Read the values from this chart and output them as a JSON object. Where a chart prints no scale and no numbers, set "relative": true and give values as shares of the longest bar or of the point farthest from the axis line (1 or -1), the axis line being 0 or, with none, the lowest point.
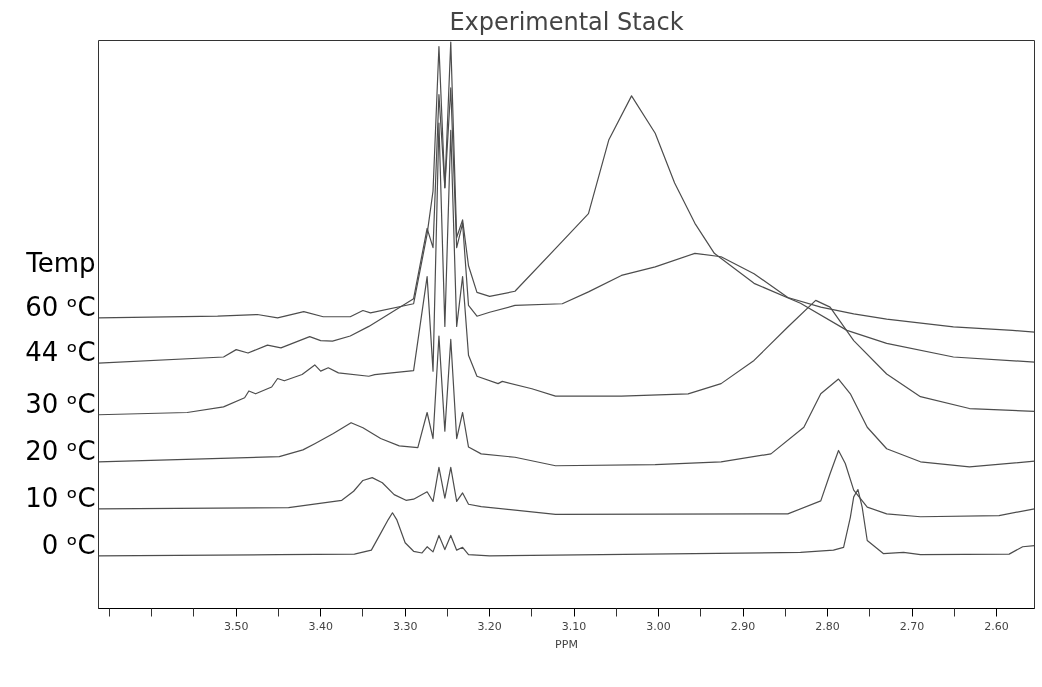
{
  "chart_data": {
    "type": "line",
    "title": "Experimental Stack",
    "xlabel": "PPM",
    "legend_title": "Temp",
    "relative": true,
    "grid": false,
    "marker": "none",
    "line_style": "solid",
    "xlim": [
      3.663,
      2.555
    ],
    "xticks": [
      {
        "value": 3.5,
        "label": "3.50"
      },
      {
        "value": 3.4,
        "label": "3.40"
      },
      {
        "value": 3.3,
        "label": "3.30"
      },
      {
        "value": 3.2,
        "label": "3.20"
      },
      {
        "value": 3.1,
        "label": "3.10"
      },
      {
        "value": 3.0,
        "label": "3.00"
      },
      {
        "value": 2.9,
        "label": "2.90"
      },
      {
        "value": 2.8,
        "label": "2.80"
      },
      {
        "value": 2.7,
        "label": "2.70"
      },
      {
        "value": 2.6,
        "label": "2.60"
      }
    ],
    "series": [
      {
        "name": "60 ᵒC",
        "color": "#4d4d4d",
        "x": [
          3.663,
          3.522,
          3.475,
          3.451,
          3.42,
          3.397,
          3.365,
          3.35,
          3.341,
          3.29,
          3.274,
          3.267,
          3.26,
          3.253,
          3.246,
          3.239,
          3.232,
          3.225,
          3.215,
          3.2,
          3.17,
          3.114,
          3.083,
          3.059,
          3.032,
          3.004,
          2.981,
          2.957,
          2.934,
          2.887,
          2.832,
          2.777,
          2.73,
          2.651,
          2.555
        ],
        "values": [
          0.513,
          0.516,
          0.519,
          0.513,
          0.524,
          0.515,
          0.515,
          0.526,
          0.522,
          0.538,
          0.661,
          0.737,
          0.992,
          0.743,
          1.0,
          0.655,
          0.686,
          0.605,
          0.558,
          0.551,
          0.56,
          0.648,
          0.697,
          0.827,
          0.905,
          0.839,
          0.751,
          0.68,
          0.627,
          0.574,
          0.539,
          0.491,
          0.468,
          0.444,
          0.435
        ]
      },
      {
        "name": "44 ᵒC",
        "color": "#4d4d4d",
        "x": [
          3.663,
          3.515,
          3.5,
          3.486,
          3.463,
          3.447,
          3.413,
          3.4,
          3.386,
          3.365,
          3.343,
          3.29,
          3.274,
          3.267,
          3.26,
          3.253,
          3.246,
          3.239,
          3.232,
          3.225,
          3.215,
          3.2,
          3.17,
          3.114,
          3.083,
          3.044,
          3.004,
          2.957,
          2.926,
          2.887,
          2.847,
          2.808,
          2.769,
          2.73,
          2.651,
          2.581,
          2.555
        ],
        "values": [
          0.433,
          0.444,
          0.457,
          0.451,
          0.465,
          0.46,
          0.48,
          0.473,
          0.472,
          0.481,
          0.498,
          0.547,
          0.671,
          0.637,
          0.907,
          0.743,
          0.919,
          0.637,
          0.68,
          0.535,
          0.516,
          0.523,
          0.535,
          0.538,
          0.559,
          0.588,
          0.603,
          0.627,
          0.621,
          0.591,
          0.549,
          0.532,
          0.52,
          0.511,
          0.497,
          0.491,
          0.488
        ]
      },
      {
        "name": "30 ᵒC",
        "color": "#4d4d4d",
        "x": [
          3.663,
          3.558,
          3.515,
          3.49,
          3.485,
          3.477,
          3.458,
          3.451,
          3.443,
          3.422,
          3.407,
          3.4,
          3.391,
          3.379,
          3.343,
          3.336,
          3.29,
          3.274,
          3.267,
          3.26,
          3.253,
          3.246,
          3.239,
          3.232,
          3.225,
          3.215,
          3.19,
          3.185,
          3.15,
          3.122,
          3.044,
          2.965,
          2.926,
          2.887,
          2.847,
          2.814,
          2.797,
          2.769,
          2.73,
          2.69,
          2.632,
          2.555
        ],
        "values": [
          0.342,
          0.346,
          0.356,
          0.372,
          0.384,
          0.379,
          0.391,
          0.406,
          0.402,
          0.413,
          0.43,
          0.419,
          0.425,
          0.416,
          0.41,
          0.413,
          0.42,
          0.586,
          0.419,
          0.857,
          0.498,
          0.844,
          0.498,
          0.586,
          0.447,
          0.41,
          0.397,
          0.401,
          0.388,
          0.375,
          0.375,
          0.379,
          0.397,
          0.438,
          0.497,
          0.544,
          0.532,
          0.473,
          0.414,
          0.374,
          0.353,
          0.348
        ]
      },
      {
        "name": "20 ᵒC",
        "color": "#4d4d4d",
        "x": [
          3.663,
          3.449,
          3.421,
          3.407,
          3.385,
          3.364,
          3.35,
          3.329,
          3.307,
          3.285,
          3.274,
          3.267,
          3.26,
          3.253,
          3.246,
          3.239,
          3.232,
          3.225,
          3.21,
          3.17,
          3.122,
          3.004,
          2.926,
          2.867,
          2.828,
          2.808,
          2.787,
          2.773,
          2.753,
          2.73,
          2.69,
          2.632,
          2.555
        ],
        "values": [
          0.259,
          0.268,
          0.28,
          0.291,
          0.309,
          0.328,
          0.319,
          0.3,
          0.287,
          0.284,
          0.346,
          0.3,
          0.481,
          0.313,
          0.475,
          0.3,
          0.346,
          0.285,
          0.273,
          0.267,
          0.252,
          0.254,
          0.259,
          0.273,
          0.32,
          0.379,
          0.405,
          0.379,
          0.32,
          0.282,
          0.259,
          0.25,
          0.26
        ]
      },
      {
        "name": "10 ᵒC",
        "color": "#4d4d4d",
        "x": [
          3.663,
          3.438,
          3.375,
          3.361,
          3.35,
          3.339,
          3.327,
          3.313,
          3.299,
          3.29,
          3.274,
          3.267,
          3.26,
          3.253,
          3.246,
          3.239,
          3.232,
          3.225,
          3.21,
          3.122,
          2.847,
          2.808,
          2.797,
          2.787,
          2.779,
          2.769,
          2.753,
          2.73,
          2.69,
          2.597,
          2.555
        ],
        "values": [
          0.176,
          0.178,
          0.191,
          0.207,
          0.226,
          0.231,
          0.222,
          0.201,
          0.191,
          0.193,
          0.206,
          0.189,
          0.249,
          0.195,
          0.249,
          0.189,
          0.204,
          0.184,
          0.18,
          0.166,
          0.167,
          0.19,
          0.238,
          0.279,
          0.256,
          0.209,
          0.179,
          0.167,
          0.162,
          0.164,
          0.176
        ]
      },
      {
        "name": "0 ᵒC",
        "color": "#4d4d4d",
        "x": [
          3.663,
          3.45,
          3.36,
          3.34,
          3.33,
          3.32,
          3.315,
          3.31,
          3.3,
          3.29,
          3.28,
          3.274,
          3.267,
          3.26,
          3.253,
          3.246,
          3.239,
          3.232,
          3.225,
          3.2,
          2.832,
          2.793,
          2.781,
          2.773,
          2.769,
          2.764,
          2.759,
          2.753,
          2.734,
          2.71,
          2.69,
          2.585,
          2.569,
          2.555
        ],
        "values": [
          0.093,
          0.095,
          0.096,
          0.103,
          0.13,
          0.157,
          0.169,
          0.157,
          0.116,
          0.101,
          0.098,
          0.109,
          0.1,
          0.129,
          0.104,
          0.129,
          0.103,
          0.108,
          0.095,
          0.093,
          0.099,
          0.103,
          0.108,
          0.161,
          0.197,
          0.21,
          0.179,
          0.12,
          0.097,
          0.099,
          0.095,
          0.096,
          0.109,
          0.111
        ]
      }
    ]
  }
}
